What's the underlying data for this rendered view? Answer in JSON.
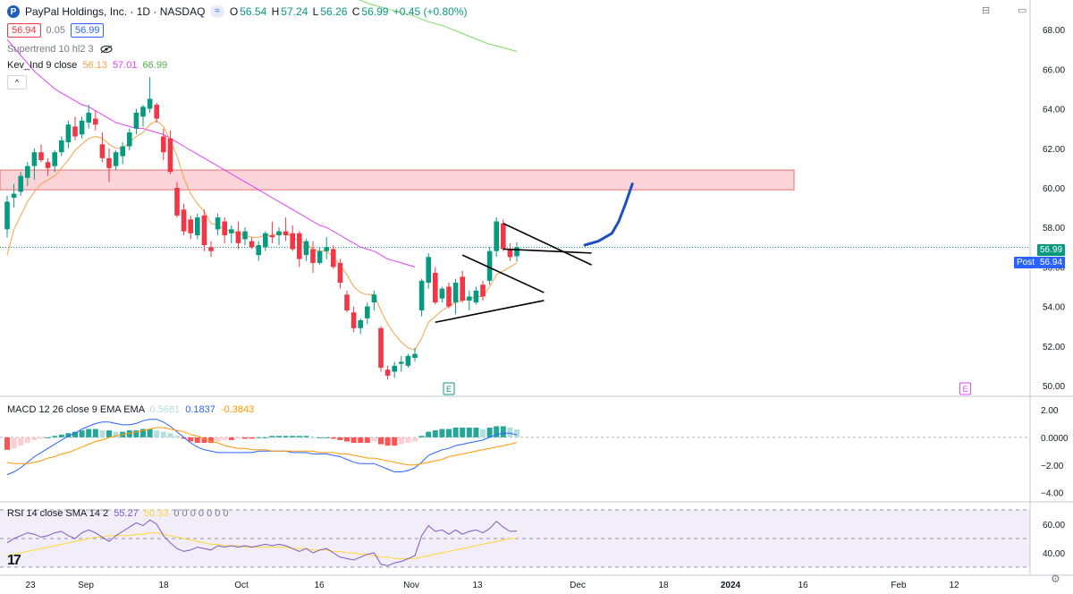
{
  "header": {
    "symbol": "PayPal Holdings, Inc. · 1D · NASDAQ",
    "logo_letter": "P",
    "pill": "≈",
    "ohlc": {
      "o_label": "O",
      "o": "56.54",
      "h_label": "H",
      "h": "57.24",
      "l_label": "L",
      "l": "56.26",
      "c_label": "C",
      "c": "56.99",
      "change": "+0.45 (+0.80%)"
    },
    "bid": "56.94",
    "spread": "0.05",
    "ask": "56.99"
  },
  "indicators": {
    "supertrend": "Supertrend 10 hl2 3",
    "kev_name": "Kev_Ind 9 close",
    "kev_v1": "56.13",
    "kev_v2": "57.01",
    "kev_v3": "66.99",
    "collapse": "^"
  },
  "macd_legend": {
    "name": "MACD 12 26 close 9 EMA EMA",
    "hist": "0.5681",
    "macd": "0.1837",
    "signal": "-0.3843"
  },
  "rsi_legend": {
    "name": "RSI 14 close SMA 14 2",
    "rsi": "55.27",
    "sma": "50.33",
    "rest": "0 0 0 0 0 0 0"
  },
  "price_badges": {
    "last": "56.99",
    "post_label": "Post",
    "post": "56.94"
  },
  "colors": {
    "up": "#089981",
    "down": "#f23645",
    "ema_fast": "#f7a14a",
    "ema_slow": "#e040fb",
    "ema_long": "#7ddc61",
    "zone": "#f8c5cb",
    "macd": "#2962ff",
    "signal": "#ff9800",
    "rsi": "#7e57c2",
    "rsi_sma": "#fdd835",
    "arrow": "#1e4fc2"
  },
  "icons": {
    "eye": "eye-off-icon",
    "settings": "gear-icon"
  },
  "tv_logo": "17",
  "chart_data": [
    {
      "type": "candlestick",
      "pane": "price",
      "ylim": [
        49.5,
        69.5
      ],
      "y_ticks": [
        50,
        52,
        54,
        56,
        58,
        60,
        62,
        64,
        66,
        68
      ],
      "y_tick_labels": [
        "50.00",
        "52.00",
        "54.00",
        "56.00",
        "58.00",
        "60.00",
        "62.00",
        "64.00",
        "66.00",
        "68.00"
      ],
      "x_tick_labels": [
        "23",
        "Sep",
        "18",
        "Oct",
        "16",
        "Nov",
        "13",
        "Dec",
        "18",
        "2024",
        "16",
        "Feb",
        "12"
      ],
      "candles": [
        [
          57.9,
          59.6,
          57.5,
          59.3
        ],
        [
          59.5,
          60.2,
          59.0,
          59.7
        ],
        [
          59.8,
          60.8,
          59.6,
          60.6
        ],
        [
          60.5,
          61.3,
          60.1,
          61.1
        ],
        [
          61.1,
          62.0,
          60.4,
          61.8
        ],
        [
          61.8,
          62.2,
          61.3,
          61.4
        ],
        [
          61.3,
          61.5,
          60.6,
          61.0
        ],
        [
          61.1,
          61.9,
          60.8,
          61.8
        ],
        [
          61.8,
          62.6,
          61.6,
          62.4
        ],
        [
          62.3,
          63.4,
          62.0,
          63.2
        ],
        [
          63.1,
          63.6,
          62.4,
          62.6
        ],
        [
          62.7,
          63.6,
          62.5,
          63.4
        ],
        [
          63.3,
          64.2,
          63.0,
          63.8
        ],
        [
          63.5,
          63.9,
          62.9,
          63.2
        ],
        [
          62.2,
          62.8,
          61.3,
          61.5
        ],
        [
          61.5,
          62.0,
          60.3,
          61.0
        ],
        [
          61.1,
          61.9,
          60.9,
          61.8
        ],
        [
          61.6,
          62.3,
          61.2,
          62.1
        ],
        [
          62.1,
          63.0,
          61.9,
          62.8
        ],
        [
          63.0,
          64.0,
          62.7,
          63.8
        ],
        [
          63.6,
          64.2,
          63.1,
          64.1
        ],
        [
          64.0,
          65.6,
          63.8,
          64.5
        ],
        [
          64.2,
          64.3,
          63.3,
          63.5
        ],
        [
          62.6,
          63.0,
          61.4,
          61.8
        ],
        [
          62.5,
          62.9,
          60.7,
          60.8
        ],
        [
          60.0,
          60.3,
          58.5,
          58.6
        ],
        [
          58.9,
          59.2,
          57.6,
          57.8
        ],
        [
          58.4,
          58.6,
          57.4,
          57.7
        ],
        [
          57.6,
          58.7,
          57.4,
          58.5
        ],
        [
          58.6,
          58.9,
          56.8,
          57.1
        ],
        [
          57.0,
          57.3,
          56.5,
          56.8
        ],
        [
          57.9,
          58.7,
          57.6,
          58.5
        ],
        [
          58.3,
          58.5,
          57.2,
          57.6
        ],
        [
          57.7,
          58.1,
          57.2,
          57.9
        ],
        [
          57.8,
          58.3,
          56.9,
          57.2
        ],
        [
          57.4,
          58.0,
          57.1,
          57.8
        ],
        [
          57.3,
          57.5,
          56.9,
          57.0
        ],
        [
          56.6,
          57.3,
          56.3,
          57.1
        ],
        [
          57.0,
          57.8,
          56.8,
          57.7
        ],
        [
          57.6,
          58.3,
          57.2,
          57.5
        ],
        [
          57.6,
          58.0,
          57.1,
          57.8
        ],
        [
          57.8,
          58.5,
          57.3,
          57.6
        ],
        [
          57.7,
          58.1,
          56.8,
          56.9
        ],
        [
          57.7,
          57.8,
          56.0,
          56.4
        ],
        [
          56.6,
          57.4,
          56.3,
          57.3
        ],
        [
          56.9,
          57.3,
          55.7,
          56.2
        ],
        [
          56.2,
          57.0,
          56.1,
          56.8
        ],
        [
          56.8,
          57.5,
          56.4,
          57.0
        ],
        [
          56.9,
          57.1,
          55.9,
          56.0
        ],
        [
          56.2,
          56.4,
          54.9,
          55.2
        ],
        [
          54.6,
          54.8,
          53.7,
          53.8
        ],
        [
          53.7,
          54.0,
          52.7,
          52.9
        ],
        [
          52.9,
          53.4,
          52.6,
          53.3
        ],
        [
          53.4,
          54.2,
          53.1,
          54.0
        ],
        [
          54.2,
          54.8,
          53.8,
          54.6
        ],
        [
          52.9,
          53.0,
          50.7,
          50.9
        ],
        [
          50.8,
          51.0,
          50.3,
          50.5
        ],
        [
          50.7,
          51.2,
          50.4,
          51.0
        ],
        [
          51.1,
          51.5,
          50.7,
          51.2
        ],
        [
          51.0,
          51.6,
          50.9,
          51.5
        ],
        [
          51.4,
          51.9,
          51.2,
          51.6
        ],
        [
          53.8,
          55.4,
          53.5,
          55.3
        ],
        [
          55.2,
          56.7,
          54.9,
          56.5
        ],
        [
          55.7,
          56.0,
          54.1,
          54.2
        ],
        [
          54.4,
          55.0,
          54.2,
          54.9
        ],
        [
          55.0,
          55.2,
          53.9,
          54.0
        ],
        [
          54.2,
          55.4,
          53.6,
          55.2
        ],
        [
          55.5,
          55.8,
          54.2,
          54.3
        ],
        [
          54.3,
          54.8,
          53.8,
          54.5
        ],
        [
          54.2,
          55.0,
          54.1,
          54.8
        ],
        [
          55.1,
          55.3,
          54.3,
          54.5
        ],
        [
          55.3,
          57.0,
          55.1,
          56.8
        ],
        [
          56.8,
          58.5,
          56.5,
          58.3
        ],
        [
          58.2,
          58.4,
          56.8,
          56.9
        ],
        [
          56.9,
          57.2,
          56.3,
          56.5
        ],
        [
          56.54,
          57.24,
          56.26,
          56.99
        ]
      ],
      "ema_fast": [
        56.6,
        57.9,
        58.6,
        59.3,
        59.8,
        60.2,
        60.4,
        60.6,
        61.0,
        61.4,
        61.9,
        62.2,
        62.5,
        62.6,
        62.5,
        62.2,
        62.0,
        62.0,
        62.3,
        62.6,
        62.8,
        63.2,
        63.4,
        63.1,
        62.4,
        61.6,
        60.5,
        59.7,
        59.2,
        58.8,
        58.2,
        58.1,
        57.9,
        57.8,
        57.7,
        57.6,
        57.5,
        57.5,
        57.6,
        57.6,
        57.7,
        57.7,
        57.5,
        57.3,
        57.2,
        56.9,
        56.8,
        56.8,
        56.5,
        56.1,
        55.6,
        55.0,
        54.7,
        54.6,
        54.6,
        53.8,
        53.1,
        52.6,
        52.2,
        51.9,
        51.8,
        52.4,
        53.2,
        53.5,
        53.8,
        54.0,
        54.2,
        54.3,
        54.4,
        54.5,
        54.5,
        55.0,
        55.6,
        55.8,
        56.0,
        56.2
      ],
      "ema_slow": [
        67.5,
        67.1,
        66.7,
        66.3,
        65.9,
        65.6,
        65.3,
        65.0,
        64.8,
        64.6,
        64.4,
        64.2,
        64.1,
        63.9,
        63.7,
        63.5,
        63.3,
        63.2,
        63.1,
        63.0,
        63.0,
        62.9,
        62.8,
        62.7,
        62.5,
        62.3,
        62.1,
        61.9,
        61.7,
        61.5,
        61.3,
        61.1,
        60.9,
        60.7,
        60.5,
        60.3,
        60.1,
        59.9,
        59.7,
        59.5,
        59.3,
        59.1,
        58.9,
        58.7,
        58.5,
        58.3,
        58.1,
        58.0,
        57.8,
        57.6,
        57.4,
        57.2,
        57.0,
        56.9,
        56.8,
        56.6,
        56.4,
        56.3,
        56.2,
        56.1,
        56.0
      ],
      "ema_long": [
        69.8,
        69.6,
        69.3,
        69.1,
        68.9,
        68.7,
        68.4,
        68.2,
        67.9,
        67.6,
        67.3,
        67.1,
        66.9
      ],
      "zone": {
        "from_bar": 0,
        "to_bar": 135,
        "y_top": 60.9,
        "y_bottom": 59.9
      },
      "drawings": {
        "triangle1_upper": [
          [
            67,
            56.6
          ],
          [
            79,
            54.7
          ]
        ],
        "triangle1_lower": [
          [
            63,
            53.2
          ],
          [
            79,
            54.3
          ]
        ],
        "triangle2_upper": [
          [
            73,
            58.2
          ],
          [
            86,
            56.1
          ]
        ],
        "triangle2_lower": [
          [
            73,
            56.9
          ],
          [
            86,
            56.7
          ]
        ],
        "arrow_path": [
          [
            85,
            57.1
          ],
          [
            87,
            57.3
          ],
          [
            89,
            57.7
          ],
          [
            90,
            58.3
          ],
          [
            91,
            59.2
          ],
          [
            92,
            60.2
          ]
        ]
      },
      "earnings": [
        {
          "bar": 65,
          "label": "E",
          "color": "#089981"
        },
        {
          "bar": 141,
          "label": "E",
          "color": "#e040fb"
        }
      ]
    },
    {
      "type": "histogram+line",
      "pane": "macd",
      "title": "MACD 12 26 close 9 EMA EMA",
      "ylim": [
        -4.6,
        2.9
      ],
      "y_ticks": [
        2,
        0,
        -2,
        -4
      ],
      "y_tick_labels": [
        "2.00",
        "0.0000",
        "−2.00",
        "−4.00"
      ],
      "hist": [
        -0.9,
        -0.8,
        -0.6,
        -0.4,
        -0.2,
        -0.1,
        0.0,
        0.1,
        0.2,
        0.3,
        0.4,
        0.5,
        0.6,
        0.6,
        0.5,
        0.5,
        0.4,
        0.4,
        0.5,
        0.5,
        0.6,
        0.6,
        0.5,
        0.4,
        0.3,
        0.1,
        -0.1,
        -0.3,
        -0.4,
        -0.4,
        -0.4,
        -0.3,
        -0.2,
        -0.2,
        -0.1,
        -0.1,
        -0.1,
        0.0,
        0.0,
        0.1,
        0.1,
        0.1,
        0.1,
        0.1,
        0.1,
        0.0,
        0.0,
        0.0,
        -0.1,
        -0.2,
        -0.3,
        -0.4,
        -0.4,
        -0.4,
        -0.3,
        -0.5,
        -0.6,
        -0.6,
        -0.5,
        -0.4,
        -0.3,
        0.1,
        0.4,
        0.5,
        0.6,
        0.6,
        0.7,
        0.7,
        0.7,
        0.7,
        0.6,
        0.7,
        0.8,
        0.8,
        0.7,
        0.57
      ],
      "macd": [
        -2.7,
        -2.5,
        -2.2,
        -1.8,
        -1.4,
        -1.1,
        -0.8,
        -0.5,
        -0.2,
        0.1,
        0.3,
        0.6,
        0.8,
        1.0,
        1.1,
        1.1,
        1.0,
        0.9,
        0.9,
        1.0,
        1.2,
        1.3,
        1.3,
        1.1,
        0.8,
        0.4,
        0.0,
        -0.4,
        -0.7,
        -0.9,
        -1.0,
        -1.1,
        -1.1,
        -1.1,
        -1.1,
        -1.1,
        -1.1,
        -1.0,
        -1.0,
        -1.0,
        -1.0,
        -1.0,
        -1.1,
        -1.1,
        -1.1,
        -1.2,
        -1.2,
        -1.2,
        -1.3,
        -1.4,
        -1.6,
        -1.8,
        -1.9,
        -1.9,
        -1.9,
        -2.1,
        -2.3,
        -2.5,
        -2.5,
        -2.4,
        -2.2,
        -1.8,
        -1.3,
        -1.1,
        -0.9,
        -0.8,
        -0.6,
        -0.5,
        -0.4,
        -0.3,
        -0.2,
        0.0,
        0.2,
        0.3,
        0.3,
        0.18
      ],
      "signal": [
        -1.8,
        -1.9,
        -1.9,
        -1.9,
        -1.8,
        -1.7,
        -1.5,
        -1.4,
        -1.2,
        -1.1,
        -0.9,
        -0.7,
        -0.5,
        -0.3,
        -0.2,
        0.0,
        0.1,
        0.2,
        0.3,
        0.4,
        0.5,
        0.6,
        0.7,
        0.7,
        0.6,
        0.5,
        0.4,
        0.2,
        0.1,
        -0.1,
        -0.3,
        -0.4,
        -0.6,
        -0.7,
        -0.8,
        -0.8,
        -0.9,
        -0.9,
        -0.9,
        -1.0,
        -1.0,
        -1.0,
        -1.0,
        -1.0,
        -1.0,
        -1.0,
        -1.1,
        -1.1,
        -1.1,
        -1.2,
        -1.2,
        -1.3,
        -1.4,
        -1.5,
        -1.5,
        -1.6,
        -1.7,
        -1.8,
        -1.9,
        -2.0,
        -2.0,
        -1.9,
        -1.8,
        -1.7,
        -1.6,
        -1.4,
        -1.3,
        -1.2,
        -1.1,
        -1.0,
        -0.9,
        -0.8,
        -0.7,
        -0.6,
        -0.5,
        -0.38
      ]
    },
    {
      "type": "line",
      "pane": "rsi",
      "title": "RSI 14 close SMA 14 2",
      "ylim": [
        25,
        75
      ],
      "y_ticks": [
        60,
        40
      ],
      "y_tick_labels": [
        "60.00",
        "40.00"
      ],
      "band": [
        30,
        70
      ],
      "rsi": [
        47,
        50,
        52,
        54,
        53,
        51,
        52,
        54,
        55,
        52,
        50,
        54,
        56,
        54,
        51,
        48,
        52,
        55,
        58,
        61,
        59,
        63,
        60,
        52,
        47,
        43,
        41,
        42,
        44,
        43,
        42,
        45,
        44,
        45,
        44,
        45,
        44,
        45,
        46,
        45,
        46,
        45,
        43,
        41,
        43,
        40,
        42,
        43,
        40,
        37,
        36,
        35,
        37,
        39,
        40,
        32,
        31,
        33,
        34,
        36,
        38,
        52,
        59,
        55,
        56,
        53,
        56,
        53,
        55,
        56,
        54,
        57,
        62,
        58,
        55,
        55.27
      ],
      "sma": [
        38,
        39,
        40,
        41,
        42,
        43,
        44,
        45,
        46,
        47,
        48,
        49,
        50,
        51,
        51,
        52,
        52,
        52,
        52,
        53,
        53,
        54,
        54,
        53,
        52,
        51,
        50,
        49,
        48,
        47,
        46,
        46,
        45,
        45,
        45,
        44,
        44,
        44,
        44,
        44,
        44,
        44,
        43,
        43,
        43,
        42,
        42,
        42,
        41,
        41,
        40,
        40,
        39,
        39,
        38,
        37,
        37,
        36,
        36,
        36,
        36,
        37,
        38,
        39,
        40,
        41,
        42,
        43,
        44,
        45,
        46,
        47,
        48,
        49,
        50,
        50.33
      ]
    }
  ]
}
